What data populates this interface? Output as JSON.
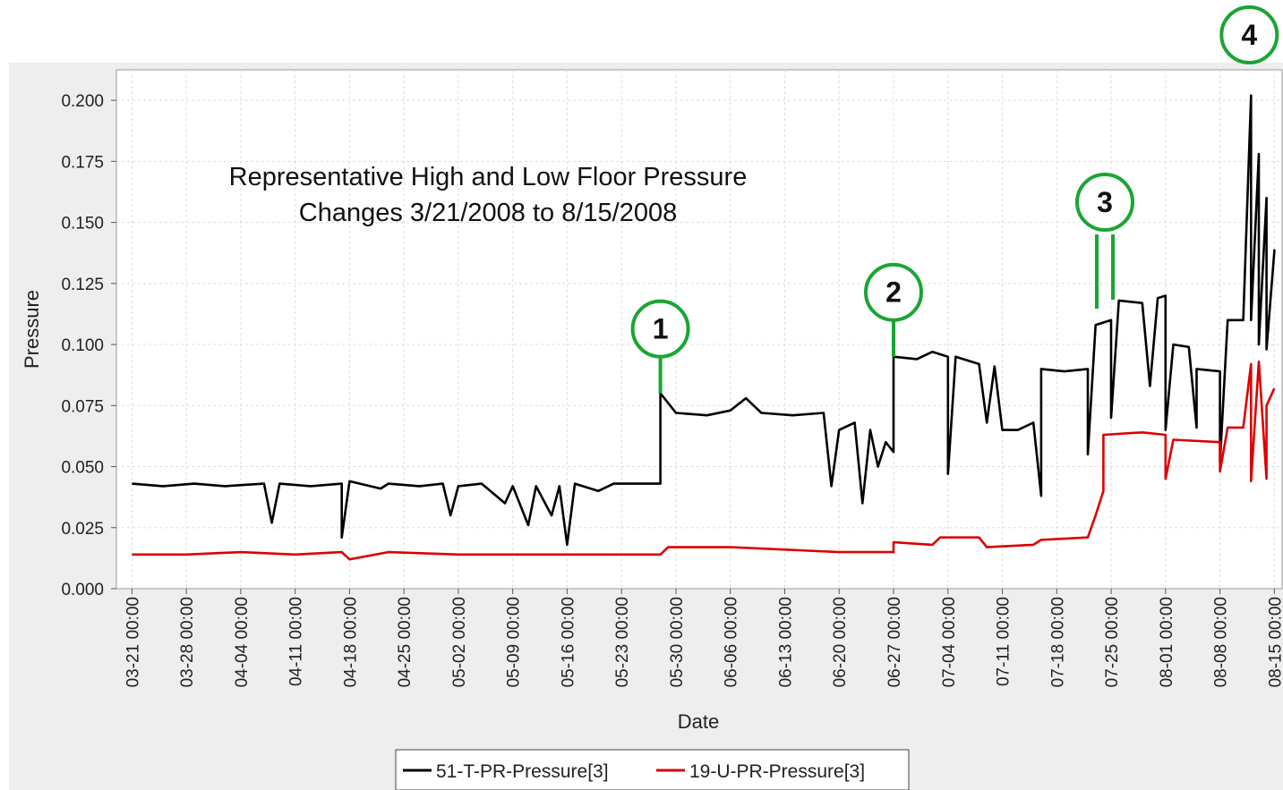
{
  "chart_data": {
    "type": "line",
    "title": "Representative High and Low Floor Pressure",
    "subtitle": "Changes 3/21/2008 to 8/15/2008",
    "xlabel": "Date",
    "ylabel": "Pressure",
    "ylim": [
      0,
      0.2125
    ],
    "xlim": [
      "2008-03-19",
      "2008-08-16"
    ],
    "yticks": [
      "0.000",
      "0.025",
      "0.050",
      "0.075",
      "0.100",
      "0.125",
      "0.150",
      "0.175",
      "0.200"
    ],
    "xticks": [
      "03-21 00:00",
      "03-28 00:00",
      "04-04 00:00",
      "04-11 00:00",
      "04-18 00:00",
      "04-25 00:00",
      "05-02 00:00",
      "05-09 00:00",
      "05-16 00:00",
      "05-23 00:00",
      "05-30 00:00",
      "06-06 00:00",
      "06-13 00:00",
      "06-20 00:00",
      "06-27 00:00",
      "07-04 00:00",
      "07-11 00:00",
      "07-18 00:00",
      "07-25 00:00",
      "08-01 00:00",
      "08-08 00:00",
      "08-15 00:00"
    ],
    "grid": true,
    "legend_position": "bottom",
    "series": [
      {
        "name": "51-T-PR-Pressure[3]",
        "color": "#000000",
        "points": [
          [
            "2008-03-21",
            0.043
          ],
          [
            "2008-03-25",
            0.042
          ],
          [
            "2008-03-29",
            0.043
          ],
          [
            "2008-04-02",
            0.042
          ],
          [
            "2008-04-07",
            0.043
          ],
          [
            "2008-04-08",
            0.027
          ],
          [
            "2008-04-09",
            0.043
          ],
          [
            "2008-04-13",
            0.042
          ],
          [
            "2008-04-17",
            0.043
          ],
          [
            "2008-04-17",
            0.021
          ],
          [
            "2008-04-18",
            0.044
          ],
          [
            "2008-04-22",
            0.041
          ],
          [
            "2008-04-23",
            0.043
          ],
          [
            "2008-04-27",
            0.042
          ],
          [
            "2008-04-30",
            0.043
          ],
          [
            "2008-05-01",
            0.03
          ],
          [
            "2008-05-02",
            0.042
          ],
          [
            "2008-05-05",
            0.043
          ],
          [
            "2008-05-08",
            0.035
          ],
          [
            "2008-05-09",
            0.042
          ],
          [
            "2008-05-11",
            0.026
          ],
          [
            "2008-05-12",
            0.042
          ],
          [
            "2008-05-14",
            0.03
          ],
          [
            "2008-05-15",
            0.042
          ],
          [
            "2008-05-16",
            0.018
          ],
          [
            "2008-05-17",
            0.043
          ],
          [
            "2008-05-20",
            0.04
          ],
          [
            "2008-05-22",
            0.043
          ],
          [
            "2008-05-28",
            0.043
          ],
          [
            "2008-05-28",
            0.08
          ],
          [
            "2008-05-30",
            0.072
          ],
          [
            "2008-06-03",
            0.071
          ],
          [
            "2008-06-06",
            0.073
          ],
          [
            "2008-06-08",
            0.078
          ],
          [
            "2008-06-10",
            0.072
          ],
          [
            "2008-06-14",
            0.071
          ],
          [
            "2008-06-18",
            0.072
          ],
          [
            "2008-06-19",
            0.042
          ],
          [
            "2008-06-20",
            0.065
          ],
          [
            "2008-06-22",
            0.068
          ],
          [
            "2008-06-23",
            0.035
          ],
          [
            "2008-06-24",
            0.065
          ],
          [
            "2008-06-25",
            0.05
          ],
          [
            "2008-06-26",
            0.06
          ],
          [
            "2008-06-27",
            0.056
          ],
          [
            "2008-06-27",
            0.095
          ],
          [
            "2008-06-30",
            0.094
          ],
          [
            "2008-07-02",
            0.097
          ],
          [
            "2008-07-04",
            0.095
          ],
          [
            "2008-07-04",
            0.047
          ],
          [
            "2008-07-05",
            0.095
          ],
          [
            "2008-07-08",
            0.092
          ],
          [
            "2008-07-09",
            0.068
          ],
          [
            "2008-07-10",
            0.091
          ],
          [
            "2008-07-11",
            0.065
          ],
          [
            "2008-07-13",
            0.065
          ],
          [
            "2008-07-15",
            0.068
          ],
          [
            "2008-07-16",
            0.038
          ],
          [
            "2008-07-16",
            0.09
          ],
          [
            "2008-07-19",
            0.089
          ],
          [
            "2008-07-22",
            0.09
          ],
          [
            "2008-07-22",
            0.055
          ],
          [
            "2008-07-23",
            0.108
          ],
          [
            "2008-07-25",
            0.11
          ],
          [
            "2008-07-25",
            0.07
          ],
          [
            "2008-07-26",
            0.118
          ],
          [
            "2008-07-29",
            0.117
          ],
          [
            "2008-07-30",
            0.083
          ],
          [
            "2008-07-31",
            0.119
          ],
          [
            "2008-08-01",
            0.12
          ],
          [
            "2008-08-01",
            0.065
          ],
          [
            "2008-08-02",
            0.1
          ],
          [
            "2008-08-04",
            0.099
          ],
          [
            "2008-08-05",
            0.066
          ],
          [
            "2008-08-05",
            0.09
          ],
          [
            "2008-08-08",
            0.089
          ],
          [
            "2008-08-08",
            0.052
          ],
          [
            "2008-08-09",
            0.11
          ],
          [
            "2008-08-11",
            0.11
          ],
          [
            "2008-08-12",
            0.202
          ],
          [
            "2008-08-12",
            0.11
          ],
          [
            "2008-08-13",
            0.178
          ],
          [
            "2008-08-13",
            0.1
          ],
          [
            "2008-08-14",
            0.16
          ],
          [
            "2008-08-14",
            0.098
          ],
          [
            "2008-08-15",
            0.138
          ],
          [
            "2008-08-15",
            0.139
          ]
        ]
      },
      {
        "name": "19-U-PR-Pressure[3]",
        "color": "#dd0000",
        "points": [
          [
            "2008-03-21",
            0.014
          ],
          [
            "2008-03-28",
            0.014
          ],
          [
            "2008-04-04",
            0.015
          ],
          [
            "2008-04-11",
            0.014
          ],
          [
            "2008-04-17",
            0.015
          ],
          [
            "2008-04-18",
            0.012
          ],
          [
            "2008-04-23",
            0.015
          ],
          [
            "2008-05-02",
            0.014
          ],
          [
            "2008-05-09",
            0.014
          ],
          [
            "2008-05-16",
            0.014
          ],
          [
            "2008-05-23",
            0.014
          ],
          [
            "2008-05-28",
            0.014
          ],
          [
            "2008-05-29",
            0.017
          ],
          [
            "2008-06-06",
            0.017
          ],
          [
            "2008-06-13",
            0.016
          ],
          [
            "2008-06-20",
            0.015
          ],
          [
            "2008-06-27",
            0.015
          ],
          [
            "2008-06-27",
            0.019
          ],
          [
            "2008-07-02",
            0.018
          ],
          [
            "2008-07-03",
            0.021
          ],
          [
            "2008-07-08",
            0.021
          ],
          [
            "2008-07-09",
            0.017
          ],
          [
            "2008-07-15",
            0.018
          ],
          [
            "2008-07-16",
            0.02
          ],
          [
            "2008-07-22",
            0.021
          ],
          [
            "2008-07-23",
            0.03
          ],
          [
            "2008-07-24",
            0.04
          ],
          [
            "2008-07-24",
            0.063
          ],
          [
            "2008-07-29",
            0.064
          ],
          [
            "2008-08-01",
            0.063
          ],
          [
            "2008-08-01",
            0.045
          ],
          [
            "2008-08-02",
            0.061
          ],
          [
            "2008-08-08",
            0.06
          ],
          [
            "2008-08-08",
            0.048
          ],
          [
            "2008-08-09",
            0.066
          ],
          [
            "2008-08-11",
            0.066
          ],
          [
            "2008-08-12",
            0.092
          ],
          [
            "2008-08-12",
            0.044
          ],
          [
            "2008-08-13",
            0.093
          ],
          [
            "2008-08-14",
            0.045
          ],
          [
            "2008-08-14",
            0.075
          ],
          [
            "2008-08-15",
            0.082
          ]
        ]
      }
    ],
    "annotations": [
      {
        "label": "1",
        "date": "2008-05-28"
      },
      {
        "label": "2",
        "date": "2008-06-27"
      },
      {
        "label": "3",
        "date": "2008-07-24"
      },
      {
        "label": "4",
        "date": "2008-08-12"
      }
    ],
    "annotation_color": "#1aa533"
  }
}
